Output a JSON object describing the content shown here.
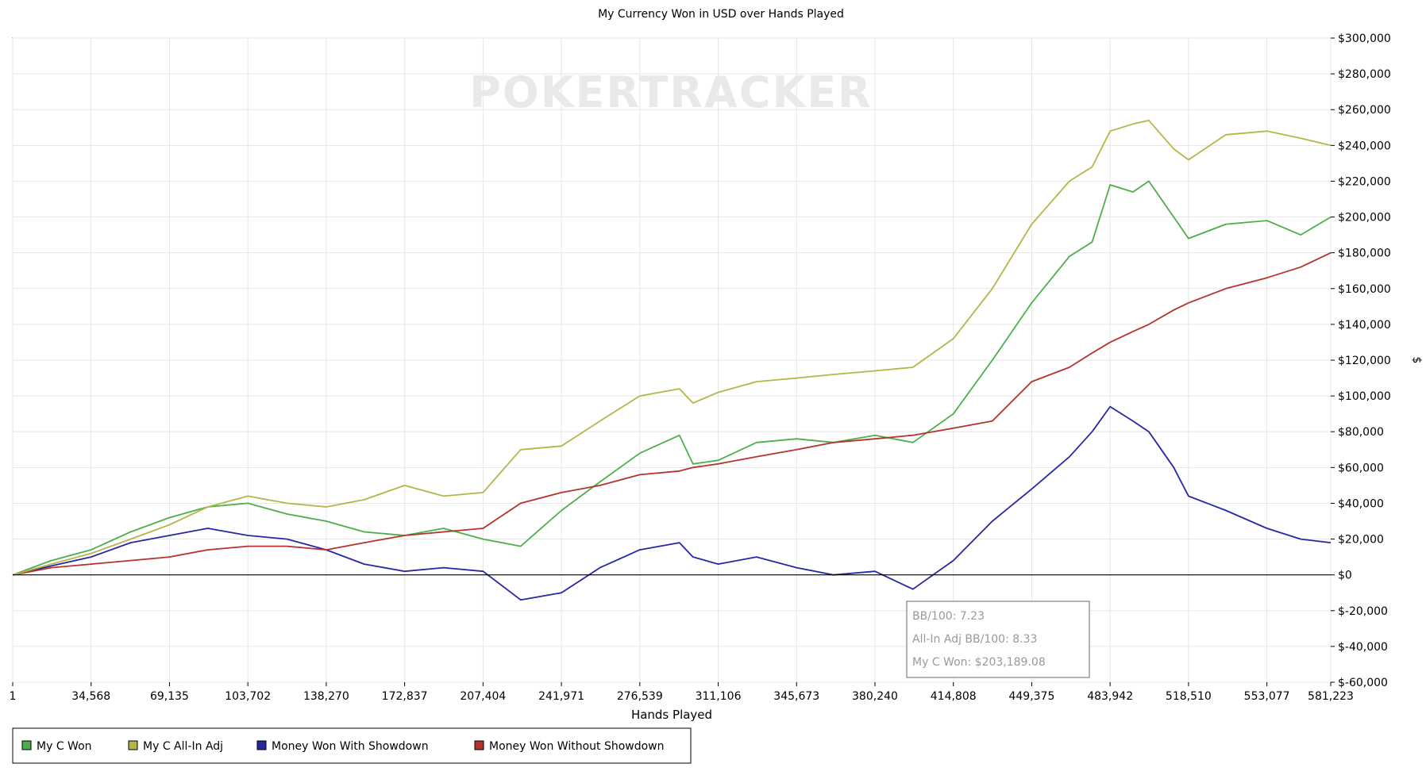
{
  "watermark": "POKERTRACKER",
  "info_box": {
    "bb100": "BB/100: 7.23",
    "allin_bb100": "All-In Adj BB/100: 8.33",
    "won": "My C Won: $203,189.08"
  },
  "colors": {
    "my_c_won": "#4daf4a",
    "my_c_allin_adj": "#b5b548",
    "money_with_showdown": "#2727a6",
    "money_without_showdown": "#b5322d",
    "grid": "#e6e6e6",
    "zero_line": "#000000"
  },
  "chart_data": {
    "type": "line",
    "title": "My Currency Won in USD over Hands Played",
    "xlabel": "Hands Played",
    "ylabel": "$",
    "xlim": [
      1,
      581223
    ],
    "ylim": [
      -60000,
      300000
    ],
    "grid": true,
    "legend_position": "bottom-left",
    "x_ticks": [
      1,
      34568,
      69135,
      103702,
      138270,
      172837,
      207404,
      241971,
      276539,
      311106,
      345673,
      380240,
      414808,
      449375,
      483942,
      518510,
      553077,
      581223
    ],
    "x_tick_labels": [
      "1",
      "34,568",
      "69,135",
      "103,702",
      "138,270",
      "172,837",
      "207,404",
      "241,971",
      "276,539",
      "311,106",
      "345,673",
      "380,240",
      "414,808",
      "449,375",
      "483,942",
      "518,510",
      "553,077",
      "581,223"
    ],
    "y_ticks": [
      300000,
      280000,
      260000,
      240000,
      220000,
      200000,
      180000,
      160000,
      140000,
      120000,
      100000,
      80000,
      60000,
      40000,
      20000,
      0,
      -20000,
      -40000,
      -60000
    ],
    "y_tick_labels": [
      "$300,000",
      "$280,000",
      "$260,000",
      "$240,000",
      "$220,000",
      "$200,000",
      "$180,000",
      "$160,000",
      "$140,000",
      "$120,000",
      "$100,000",
      "$80,000",
      "$60,000",
      "$40,000",
      "$20,000",
      "$0",
      "$-20,000",
      "$-40,000",
      "$-60,000"
    ],
    "series": [
      {
        "name": "My C Won",
        "color": "#4daf4a",
        "x": [
          1,
          17000,
          34568,
          52000,
          69135,
          86000,
          103702,
          121000,
          138270,
          155000,
          172837,
          190000,
          207404,
          224000,
          241971,
          259000,
          276539,
          294000,
          300000,
          311106,
          328000,
          345673,
          362000,
          380240,
          397000,
          414808,
          432000,
          449375,
          466000,
          476000,
          483942,
          494000,
          501000,
          512000,
          518510,
          535000,
          553077,
          568000,
          581223
        ],
        "y": [
          0,
          8000,
          14000,
          24000,
          32000,
          38000,
          40000,
          34000,
          30000,
          24000,
          22000,
          26000,
          20000,
          16000,
          36000,
          52000,
          68000,
          78000,
          62000,
          64000,
          74000,
          76000,
          74000,
          78000,
          74000,
          90000,
          120000,
          152000,
          178000,
          186000,
          218000,
          214000,
          220000,
          200000,
          188000,
          196000,
          198000,
          190000,
          200000
        ]
      },
      {
        "name": "My C All-In Adj",
        "color": "#b5b548",
        "x": [
          1,
          17000,
          34568,
          52000,
          69135,
          86000,
          103702,
          121000,
          138270,
          155000,
          172837,
          190000,
          207404,
          224000,
          241971,
          259000,
          276539,
          294000,
          300000,
          311106,
          328000,
          345673,
          362000,
          380240,
          397000,
          414808,
          432000,
          449375,
          466000,
          476000,
          483942,
          494000,
          501000,
          512000,
          518510,
          535000,
          553077,
          568000,
          581223
        ],
        "y": [
          0,
          6000,
          12000,
          20000,
          28000,
          38000,
          44000,
          40000,
          38000,
          42000,
          50000,
          44000,
          46000,
          70000,
          72000,
          86000,
          100000,
          104000,
          96000,
          102000,
          108000,
          110000,
          112000,
          114000,
          116000,
          132000,
          160000,
          196000,
          220000,
          228000,
          248000,
          252000,
          254000,
          238000,
          232000,
          246000,
          248000,
          244000,
          240000
        ]
      },
      {
        "name": "Money Won With Showdown",
        "color": "#2727a6",
        "x": [
          1,
          17000,
          34568,
          52000,
          69135,
          86000,
          103702,
          121000,
          138270,
          155000,
          172837,
          190000,
          207404,
          224000,
          241971,
          259000,
          276539,
          294000,
          300000,
          311106,
          328000,
          345673,
          362000,
          380240,
          397000,
          414808,
          432000,
          449375,
          466000,
          476000,
          483942,
          494000,
          501000,
          512000,
          518510,
          535000,
          553077,
          568000,
          581223
        ],
        "y": [
          0,
          5000,
          10000,
          18000,
          22000,
          26000,
          22000,
          20000,
          14000,
          6000,
          2000,
          4000,
          2000,
          -14000,
          -10000,
          4000,
          14000,
          18000,
          10000,
          6000,
          10000,
          4000,
          0,
          2000,
          -8000,
          8000,
          30000,
          48000,
          66000,
          80000,
          94000,
          86000,
          80000,
          60000,
          44000,
          36000,
          26000,
          20000,
          18000
        ]
      },
      {
        "name": "Money Won Without Showdown",
        "color": "#b5322d",
        "x": [
          1,
          17000,
          34568,
          52000,
          69135,
          86000,
          103702,
          121000,
          138270,
          155000,
          172837,
          190000,
          207404,
          224000,
          241971,
          259000,
          276539,
          294000,
          300000,
          311106,
          328000,
          345673,
          362000,
          380240,
          397000,
          414808,
          432000,
          449375,
          466000,
          476000,
          483942,
          494000,
          501000,
          512000,
          518510,
          535000,
          553077,
          568000,
          581223
        ],
        "y": [
          0,
          4000,
          6000,
          8000,
          10000,
          14000,
          16000,
          16000,
          14000,
          18000,
          22000,
          24000,
          26000,
          40000,
          46000,
          50000,
          56000,
          58000,
          60000,
          62000,
          66000,
          70000,
          74000,
          76000,
          78000,
          82000,
          86000,
          108000,
          116000,
          124000,
          130000,
          136000,
          140000,
          148000,
          152000,
          160000,
          166000,
          172000,
          180000
        ]
      }
    ]
  }
}
